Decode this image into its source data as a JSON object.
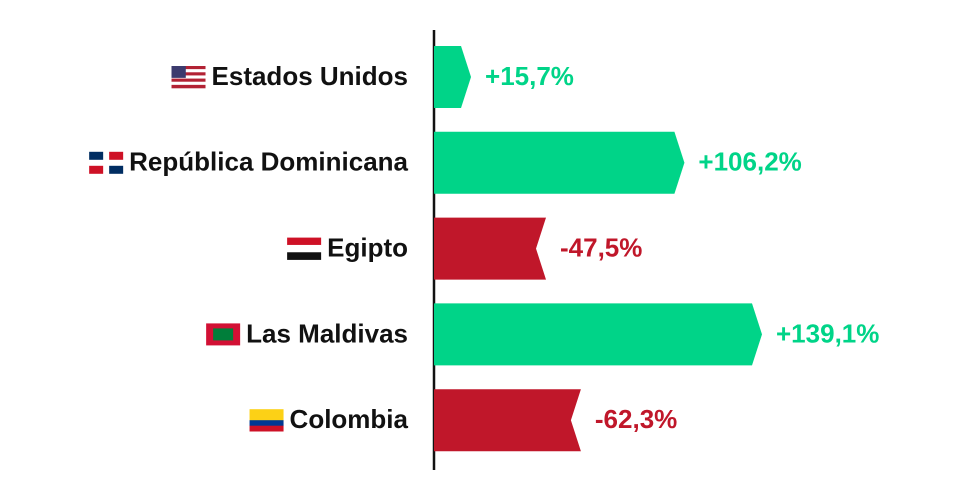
{
  "chart_data": {
    "type": "bar",
    "orientation": "horizontal",
    "categories": [
      "Estados Unidos",
      "República Dominicana",
      "Egipto",
      "Las Maldivas",
      "Colombia"
    ],
    "values": [
      15.7,
      106.2,
      -47.5,
      139.1,
      -62.3
    ],
    "value_labels": [
      "+15,7%",
      "+106,2%",
      "-47,5%",
      "+139,1%",
      "-62,3%"
    ],
    "positive_color": "#00d488",
    "negative_color": "#c0172a"
  }
}
